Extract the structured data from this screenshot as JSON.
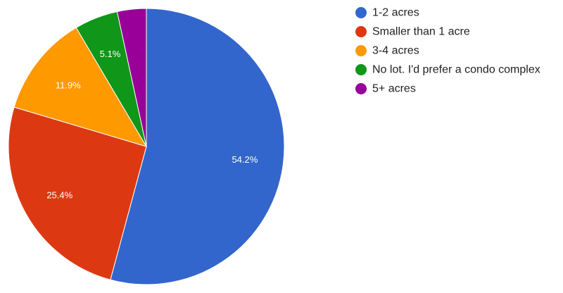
{
  "chart_data": {
    "type": "pie",
    "categories": [
      "1-2 acres",
      "Smaller than 1 acre",
      "3-4 acres",
      "No lot. I'd prefer a condo complex",
      "5+ acres"
    ],
    "values": [
      54.2,
      25.4,
      11.9,
      5.1,
      3.4
    ],
    "data_labels": [
      "54.2%",
      "25.4%",
      "11.9%",
      "5.1%",
      ""
    ],
    "colors": [
      "#3366cc",
      "#dc3912",
      "#ff9900",
      "#109618",
      "#990099"
    ],
    "start_angle_deg": 0,
    "direction": "clockwise",
    "legend_position": "right"
  }
}
